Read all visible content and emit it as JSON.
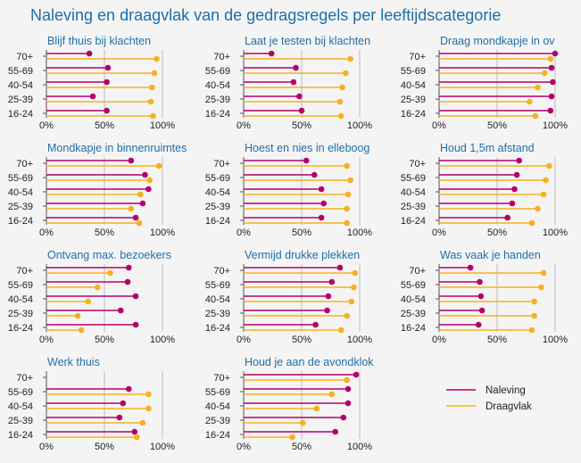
{
  "chart_data": {
    "type": "lollipop-small-multiples",
    "title": "Naleving en draagvlak van de gedragsregels per leeftijdscategorie",
    "categories": [
      "70+",
      "55-69",
      "40-54",
      "25-39",
      "16-24"
    ],
    "x_ticks": [
      "0%",
      "50%",
      "100%"
    ],
    "xlim": [
      0,
      100
    ],
    "grid": true,
    "legend": {
      "placement": "bottom-right",
      "entries": [
        "Naleving",
        "Draagvlak"
      ]
    },
    "colors": {
      "Naleving": "#b5006a",
      "Draagvlak": "#f6b11f",
      "title": "#1f6fa8"
    },
    "panels": [
      {
        "title": "Blijf thuis bij klachten",
        "series": [
          {
            "name": "Naleving",
            "values": [
              37,
              53,
              52,
              40,
              52
            ]
          },
          {
            "name": "Draagvlak",
            "values": [
              95,
              93,
              91,
              90,
              92
            ]
          }
        ]
      },
      {
        "title": "Laat je testen bij klachten",
        "series": [
          {
            "name": "Naleving",
            "values": [
              24,
              45,
              43,
              48,
              50
            ]
          },
          {
            "name": "Draagvlak",
            "values": [
              92,
              88,
              85,
              83,
              84
            ]
          }
        ]
      },
      {
        "title": "Draag mondkapje in ov",
        "series": [
          {
            "name": "Naleving",
            "values": [
              100,
              97,
              98,
              97,
              96
            ]
          },
          {
            "name": "Draagvlak",
            "values": [
              96,
              91,
              85,
              78,
              83
            ]
          }
        ]
      },
      {
        "title": "Mondkapje in binnenruimtes",
        "series": [
          {
            "name": "Naleving",
            "values": [
              73,
              85,
              88,
              83,
              77
            ]
          },
          {
            "name": "Draagvlak",
            "values": [
              97,
              89,
              81,
              73,
              80
            ]
          }
        ]
      },
      {
        "title": "Hoest en nies in elleboog",
        "series": [
          {
            "name": "Naleving",
            "values": [
              54,
              61,
              67,
              69,
              67
            ]
          },
          {
            "name": "Draagvlak",
            "values": [
              89,
              92,
              90,
              89,
              89
            ]
          }
        ]
      },
      {
        "title": "Houd 1,5m afstand",
        "series": [
          {
            "name": "Naleving",
            "values": [
              69,
              67,
              65,
              63,
              59
            ]
          },
          {
            "name": "Draagvlak",
            "values": [
              95,
              92,
              90,
              85,
              80
            ]
          }
        ]
      },
      {
        "title": "Ontvang max. bezoekers",
        "series": [
          {
            "name": "Naleving",
            "values": [
              71,
              70,
              77,
              64,
              77
            ]
          },
          {
            "name": "Draagvlak",
            "values": [
              55,
              44,
              36,
              27,
              30
            ]
          }
        ]
      },
      {
        "title": "Vermijd drukke plekken",
        "series": [
          {
            "name": "Naleving",
            "values": [
              83,
              76,
              73,
              72,
              62
            ]
          },
          {
            "name": "Draagvlak",
            "values": [
              96,
              95,
              93,
              89,
              84
            ]
          }
        ]
      },
      {
        "title": "Was vaak je handen",
        "series": [
          {
            "name": "Naleving",
            "values": [
              27,
              35,
              36,
              37,
              34
            ]
          },
          {
            "name": "Draagvlak",
            "values": [
              90,
              88,
              82,
              82,
              80
            ]
          }
        ]
      },
      {
        "title": "Werk thuis",
        "series": [
          {
            "name": "Naleving",
            "values": [
              null,
              71,
              66,
              63,
              76
            ]
          },
          {
            "name": "Draagvlak",
            "values": [
              null,
              88,
              88,
              83,
              78
            ]
          }
        ]
      },
      {
        "title": "Houd je aan de avondklok",
        "series": [
          {
            "name": "Naleving",
            "values": [
              97,
              90,
              90,
              86,
              79
            ]
          },
          {
            "name": "Draagvlak",
            "values": [
              89,
              76,
              63,
              51,
              42
            ]
          }
        ]
      }
    ]
  }
}
